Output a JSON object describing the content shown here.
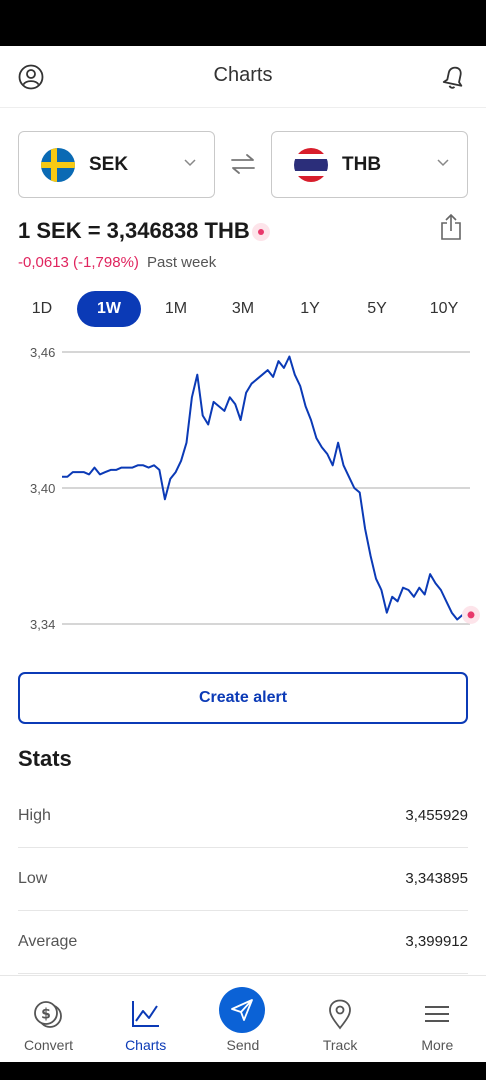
{
  "header": {
    "title": "Charts"
  },
  "converter": {
    "from": {
      "code": "SEK"
    },
    "to": {
      "code": "THB"
    }
  },
  "rate": {
    "text": "1 SEK = 3,346838 THB",
    "change": "-0,0613 (-1,798%)",
    "period": "Past week"
  },
  "ranges": [
    {
      "label": "1D"
    },
    {
      "label": "1W",
      "active": true
    },
    {
      "label": "1M"
    },
    {
      "label": "3M"
    },
    {
      "label": "1Y"
    },
    {
      "label": "5Y"
    },
    {
      "label": "10Y"
    }
  ],
  "chart_data": {
    "type": "line",
    "y_ticks": [
      "3,46",
      "3,40",
      "3,34"
    ],
    "ylim": [
      3.34,
      3.46
    ],
    "grid": true,
    "line_color": "#0b3ab6",
    "series": [
      {
        "values": [
          3.405,
          3.405,
          3.407,
          3.407,
          3.407,
          3.406,
          3.409,
          3.406,
          3.407,
          3.408,
          3.408,
          3.409,
          3.409,
          3.409,
          3.41,
          3.41,
          3.409,
          3.41,
          3.408,
          3.395,
          3.404,
          3.407,
          3.412,
          3.42,
          3.44,
          3.45,
          3.432,
          3.428,
          3.438,
          3.436,
          3.434,
          3.44,
          3.437,
          3.43,
          3.442,
          3.446,
          3.448,
          3.45,
          3.452,
          3.449,
          3.456,
          3.453,
          3.458,
          3.45,
          3.445,
          3.436,
          3.43,
          3.422,
          3.418,
          3.415,
          3.41,
          3.42,
          3.41,
          3.405,
          3.4,
          3.398,
          3.382,
          3.37,
          3.36,
          3.355,
          3.345,
          3.352,
          3.35,
          3.356,
          3.355,
          3.352,
          3.356,
          3.353,
          3.362,
          3.358,
          3.355,
          3.35,
          3.345,
          3.342,
          3.344,
          3.344
        ]
      }
    ]
  },
  "actions": {
    "create_alert": "Create alert"
  },
  "stats": {
    "title": "Stats",
    "rows": [
      {
        "label": "High",
        "value": "3,455929"
      },
      {
        "label": "Low",
        "value": "3,343895"
      },
      {
        "label": "Average",
        "value": "3,399912"
      }
    ]
  },
  "nav": [
    {
      "label": "Convert",
      "icon": "coins-icon"
    },
    {
      "label": "Charts",
      "icon": "chart-line-icon",
      "active": true
    },
    {
      "label": "Send",
      "icon": "paper-plane-icon"
    },
    {
      "label": "Track",
      "icon": "location-pin-icon"
    },
    {
      "label": "More",
      "icon": "hamburger-menu-icon"
    }
  ],
  "colors": {
    "accent": "#0b3ab6",
    "negative": "#e0245e",
    "send": "#0b62d6"
  }
}
